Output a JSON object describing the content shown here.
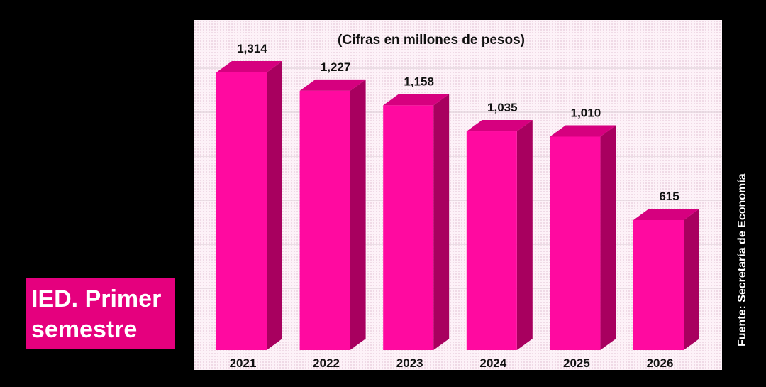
{
  "chart_data": {
    "type": "bar",
    "title": "IED. Primer semestre",
    "subtitle": "(Cifras en millones de pesos)",
    "source": "Fuente: Secretaría de Economía",
    "categories": [
      "2021",
      "2022",
      "2023",
      "2024",
      "2025",
      "2026"
    ],
    "values": [
      1314,
      1227,
      1158,
      1035,
      1010,
      615
    ],
    "value_labels": [
      "1,314",
      "1,227",
      "1,158",
      "1,035",
      "1,010",
      "615"
    ],
    "ylim": [
      0,
      1314
    ],
    "grid": true,
    "legend": "none",
    "colors": {
      "bar_front": "#ff0aa0",
      "bar_side": "#a8005f",
      "bar_top": "#d6007f",
      "title_bg": "#e5007e"
    }
  }
}
